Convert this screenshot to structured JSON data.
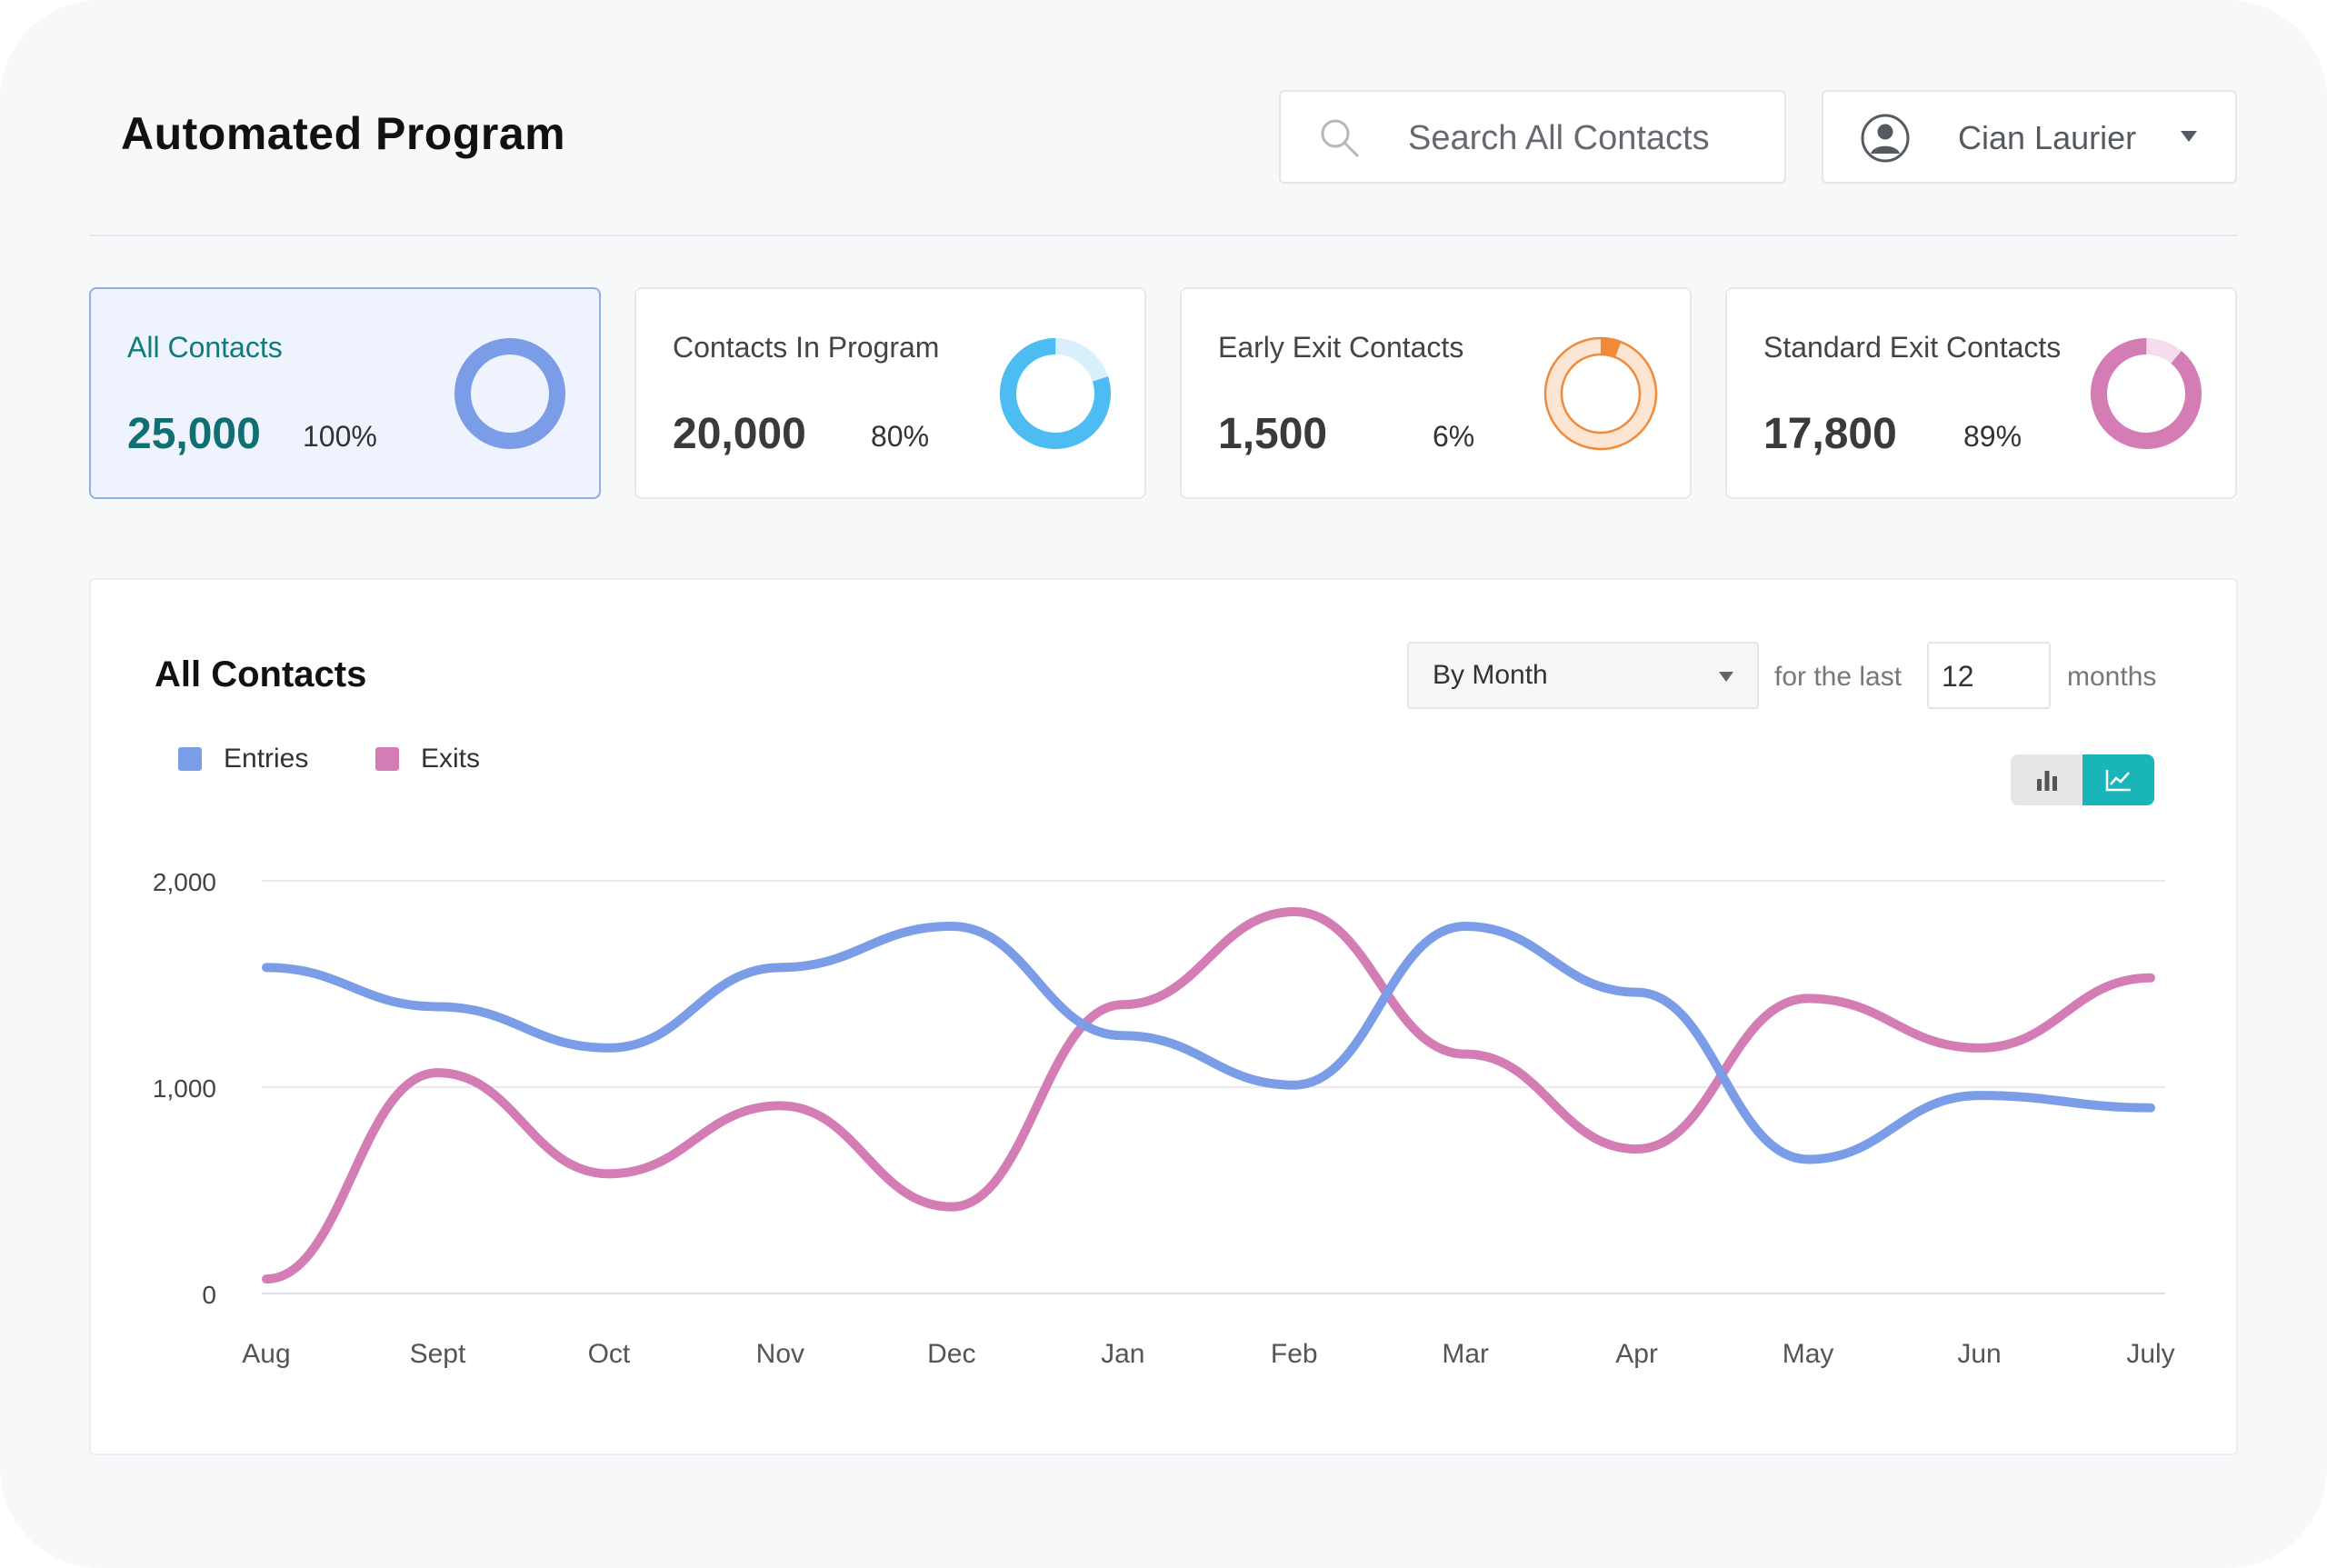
{
  "header": {
    "title": "Automated Program",
    "search": {
      "placeholder": "Search All Contacts",
      "icon": "search-icon"
    },
    "user": {
      "name": "Cian Laurier",
      "icon": "user-circle-icon"
    }
  },
  "cards": [
    {
      "label": "All Contacts",
      "value": "25,000",
      "percent": "100%",
      "fraction": 1.0,
      "color": "#7b9de8",
      "track": "#dfe7fb",
      "active": true
    },
    {
      "label": "Contacts In Program",
      "value": "20,000",
      "percent": "80%",
      "fraction": 0.8,
      "color": "#4cbcf3",
      "track": "#d7f0fc",
      "active": false
    },
    {
      "label": "Early Exit Contacts",
      "value": "1,500",
      "percent": "6%",
      "fraction": 0.06,
      "color": "#ee8a3a",
      "track": "#fde5d4",
      "active": false
    },
    {
      "label": "Standard Exit Contacts",
      "value": "17,800",
      "percent": "89%",
      "fraction": 0.89,
      "color": "#d47cb4",
      "track": "#f6dcec",
      "active": false
    }
  ],
  "panel": {
    "title": "All Contacts",
    "period": "By Month",
    "for_the_last": "for the last",
    "count": "12",
    "months": "months",
    "legend": [
      {
        "name": "Entries",
        "color": "#7b9de8"
      },
      {
        "name": "Exits",
        "color": "#d47cb4"
      }
    ],
    "toggle": {
      "bar_icon": "bar-chart-icon",
      "line_icon": "line-chart-icon",
      "active": "line"
    }
  },
  "chart_data": {
    "type": "line",
    "categories": [
      "Aug",
      "Sept",
      "Oct",
      "Nov",
      "Dec",
      "Jan",
      "Feb",
      "Mar",
      "Apr",
      "May",
      "Jun",
      "July"
    ],
    "series": [
      {
        "name": "Entries",
        "color": "#7b9de8",
        "values": [
          1580,
          1390,
          1190,
          1580,
          1780,
          1250,
          1010,
          1780,
          1460,
          650,
          960,
          900
        ]
      },
      {
        "name": "Exits",
        "color": "#d47cb4",
        "values": [
          70,
          1070,
          580,
          910,
          420,
          1400,
          1850,
          1160,
          700,
          1430,
          1190,
          1530
        ]
      }
    ],
    "yticks": [
      "2,000",
      "1,000",
      "0"
    ],
    "ylim": [
      0,
      2000
    ],
    "grid": true,
    "legend_position": "top-left"
  }
}
